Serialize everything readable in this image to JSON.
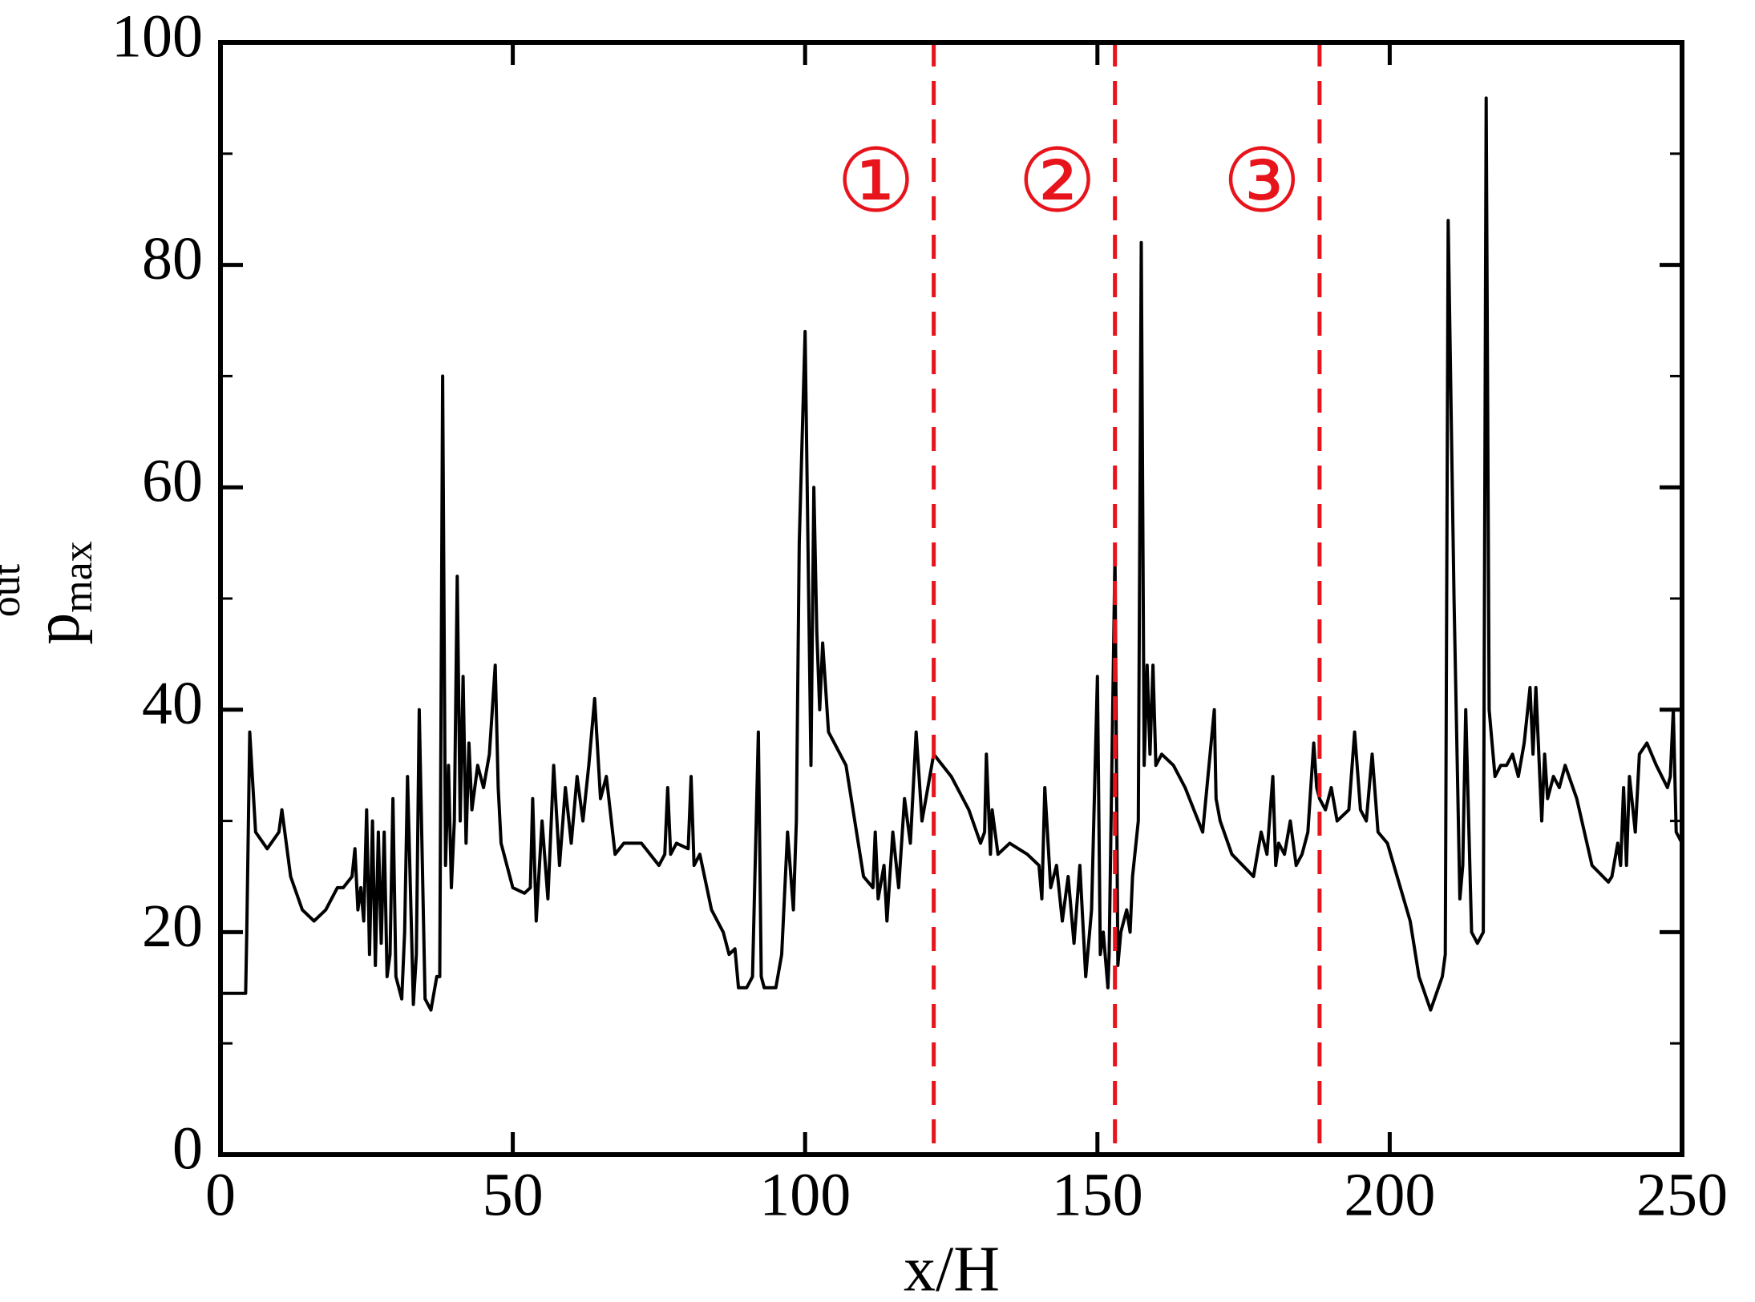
{
  "chart_data": {
    "type": "line",
    "xlabel": "x/H",
    "ylabel": {
      "base": "p",
      "sub": "max",
      "sup": "out"
    },
    "xlim": [
      0,
      250
    ],
    "xticks": [
      0,
      50,
      100,
      150,
      200,
      250
    ],
    "ylim": [
      0,
      100
    ],
    "yticks": [
      0,
      20,
      40,
      60,
      80,
      100
    ],
    "yminor": [
      10,
      30,
      50,
      70,
      90
    ],
    "grid": false,
    "series": [
      {
        "color": "#000000",
        "x": [
          0,
          4.3,
          4.5,
          5,
          6,
          8,
          10,
          10.5,
          12,
          14,
          16,
          18,
          20,
          21,
          22.5,
          23,
          23.5,
          24,
          24.5,
          25,
          25.5,
          26,
          26.5,
          27,
          27.5,
          28,
          28.5,
          29,
          29.5,
          30,
          31,
          31.5,
          32,
          33,
          33.5,
          34,
          35,
          36,
          37,
          37.5,
          38,
          38.5,
          39,
          39.5,
          40,
          40.5,
          41,
          41.5,
          42,
          42.5,
          43,
          44,
          45,
          46,
          47,
          47.5,
          48,
          50,
          52,
          53,
          53.4,
          54,
          55,
          56,
          57,
          58,
          59,
          60,
          61,
          62,
          63,
          64,
          65,
          66,
          67.5,
          69,
          72,
          75,
          76,
          76.5,
          77,
          78,
          80,
          80.5,
          81,
          82,
          84,
          86,
          87,
          88,
          88.6,
          90,
          91,
          92,
          92.5,
          93,
          95,
          96,
          97,
          98,
          98.5,
          99,
          100,
          101,
          101.5,
          102,
          102.5,
          103,
          104,
          105,
          107,
          110,
          111.6,
          112,
          112.5,
          113.5,
          114,
          115,
          116,
          117,
          118,
          119,
          120,
          122,
          125,
          127,
          128,
          130,
          130.7,
          131,
          131.7,
          132,
          133,
          135,
          138,
          140,
          140.5,
          141,
          142,
          143,
          144,
          145,
          146,
          147,
          148,
          149,
          150,
          150.5,
          151,
          151.8,
          152,
          153,
          153.5,
          154,
          155,
          155.6,
          156,
          157,
          157.5,
          158,
          158.5,
          159,
          159.5,
          160,
          161,
          163,
          165,
          168,
          170,
          170.3,
          171,
          173,
          176.7,
          178,
          179,
          180,
          180.5,
          181,
          182,
          183,
          184,
          185,
          186,
          187,
          187.5,
          188,
          189,
          190,
          191,
          193,
          194,
          195,
          196,
          197,
          198,
          199.6,
          203.5,
          205,
          207,
          208,
          209,
          209.5,
          210,
          211,
          212,
          212.5,
          213,
          214,
          215,
          216,
          216.5,
          217,
          218,
          219,
          220,
          221,
          222,
          223,
          224,
          224.5,
          225,
          226,
          226.5,
          227,
          228,
          229,
          230,
          232,
          234.6,
          237.4,
          238,
          239,
          239.5,
          240,
          240.5,
          241,
          242,
          242.7,
          244,
          245.6,
          247.5,
          248,
          248.5,
          249,
          250
        ],
        "values": [
          14.5,
          14.5,
          20,
          38,
          29,
          27.5,
          29,
          31,
          25,
          22,
          21,
          22,
          24,
          24,
          25,
          27.5,
          22,
          24,
          21,
          31,
          18,
          30,
          17,
          29,
          19,
          29,
          16,
          18,
          32,
          16,
          14,
          20,
          34,
          13.5,
          18,
          40,
          14,
          13,
          16,
          16,
          70,
          26,
          35,
          24,
          30,
          52,
          30,
          43,
          28,
          37,
          31,
          35,
          33,
          36,
          44,
          33,
          28,
          24,
          23.5,
          24,
          32,
          21,
          30,
          23,
          35,
          26,
          33,
          28,
          34,
          30,
          35,
          41,
          32,
          34,
          27,
          28,
          28,
          26,
          27,
          33,
          27,
          28,
          27.5,
          34,
          26,
          27,
          22,
          20,
          18,
          18.5,
          15,
          15,
          16,
          38,
          16,
          15,
          15,
          18,
          29,
          22,
          30,
          55,
          74,
          35,
          60,
          47,
          40,
          46,
          38,
          37,
          35,
          25,
          24,
          29,
          23,
          26,
          21,
          29,
          24,
          32,
          28,
          38,
          30,
          36,
          34,
          32,
          31,
          28,
          29,
          36,
          27,
          31,
          27,
          28,
          27,
          26,
          23,
          33,
          24,
          26,
          21,
          25,
          19,
          26,
          16,
          22,
          43,
          18,
          20,
          15,
          18,
          54,
          17,
          20,
          22,
          20,
          25,
          30,
          82,
          35,
          44,
          36,
          44,
          35,
          36,
          35,
          33,
          29,
          40,
          32,
          30,
          27,
          25,
          29,
          27,
          34,
          26,
          28,
          27,
          30,
          26,
          27,
          29,
          37,
          33,
          32,
          31,
          33,
          30,
          31,
          38,
          31,
          30,
          36,
          29,
          28,
          21,
          16,
          13,
          14.5,
          16,
          18,
          84,
          50,
          23,
          26,
          40,
          20,
          19,
          20,
          95,
          40,
          34,
          35,
          35,
          36,
          34,
          37,
          42,
          36,
          42,
          30,
          36,
          32,
          34,
          33,
          35,
          32,
          26,
          24.5,
          25,
          28,
          26,
          33,
          26,
          34,
          29,
          36,
          37,
          35,
          33,
          34,
          40,
          29,
          28
        ]
      }
    ],
    "vlines": {
      "color": "#e8141c",
      "label_y": 87,
      "lines": [
        {
          "x": 122,
          "label": "①"
        },
        {
          "x": 153,
          "label": "②"
        },
        {
          "x": 188,
          "label": "③"
        }
      ]
    }
  }
}
